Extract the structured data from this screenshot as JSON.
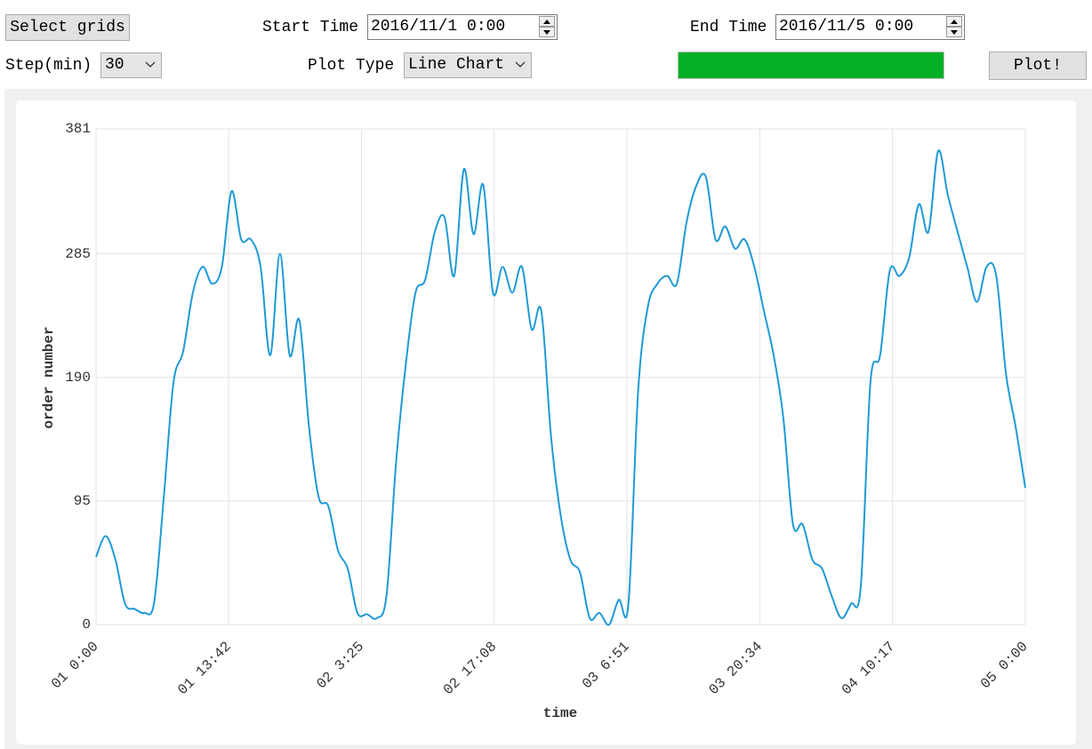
{
  "controls": {
    "select_grids": "Select grids",
    "start_time_label": "Start Time",
    "start_time_value": "2016/11/1 0:00",
    "end_time_label": "End Time",
    "end_time_value": "2016/11/5 0:00",
    "step_label": "Step(min)",
    "step_value": "30",
    "plot_type_label": "Plot Type",
    "plot_type_value": "Line Chart",
    "plot_button": "Plot!"
  },
  "chart_data": {
    "type": "line",
    "x_label": "time",
    "y_label": "order number",
    "color": "#1f9ad6",
    "grid": true,
    "xlim": [
      0,
      96
    ],
    "xticks": [
      {
        "value": 0,
        "label": "01 0:00"
      },
      {
        "value": 13.7,
        "label": "01 13:42"
      },
      {
        "value": 27.4167,
        "label": "02 3:25"
      },
      {
        "value": 41.1333,
        "label": "02 17:08"
      },
      {
        "value": 54.85,
        "label": "03 6:51"
      },
      {
        "value": 68.5667,
        "label": "03 20:34"
      },
      {
        "value": 82.2833,
        "label": "04 10:17"
      },
      {
        "value": 96,
        "label": "05 0:00"
      }
    ],
    "ylim": [
      0,
      381
    ],
    "yticks": [
      0,
      95,
      190,
      285,
      381
    ],
    "x": [
      0,
      1,
      2,
      3,
      4,
      5,
      6,
      7,
      8,
      9,
      10,
      11,
      12,
      13,
      14,
      15,
      16,
      17,
      18,
      19,
      20,
      21,
      22,
      23,
      24,
      25,
      26,
      27,
      28,
      29,
      30,
      31,
      32,
      33,
      34,
      35,
      36,
      37,
      38,
      39,
      40,
      41,
      42,
      43,
      44,
      45,
      46,
      47,
      48,
      49,
      50,
      51,
      52,
      53,
      54,
      55,
      56,
      57,
      58,
      59,
      60,
      61,
      62,
      63,
      64,
      65,
      66,
      67,
      68,
      69,
      70,
      71,
      72,
      73,
      74,
      75,
      76,
      77,
      78,
      79,
      80,
      81,
      82,
      83,
      84,
      85,
      86,
      87,
      88,
      89,
      90,
      91,
      92,
      93,
      94,
      95,
      96
    ],
    "values": [
      52,
      68,
      50,
      16,
      12,
      9,
      17,
      98,
      186,
      210,
      255,
      275,
      262,
      275,
      333,
      296,
      296,
      275,
      207,
      285,
      207,
      234,
      152,
      98,
      91,
      57,
      43,
      9,
      8,
      5,
      22,
      125,
      200,
      255,
      265,
      302,
      313,
      268,
      350,
      300,
      338,
      255,
      275,
      255,
      275,
      227,
      241,
      145,
      84,
      50,
      40,
      5,
      9,
      0,
      19,
      16,
      179,
      244,
      262,
      268,
      262,
      309,
      337,
      344,
      296,
      306,
      289,
      296,
      275,
      241,
      207,
      159,
      77,
      77,
      50,
      43,
      22,
      5,
      16,
      29,
      186,
      207,
      272,
      268,
      282,
      323,
      302,
      364,
      330,
      302,
      275,
      248,
      275,
      268,
      193,
      152,
      105
    ]
  }
}
